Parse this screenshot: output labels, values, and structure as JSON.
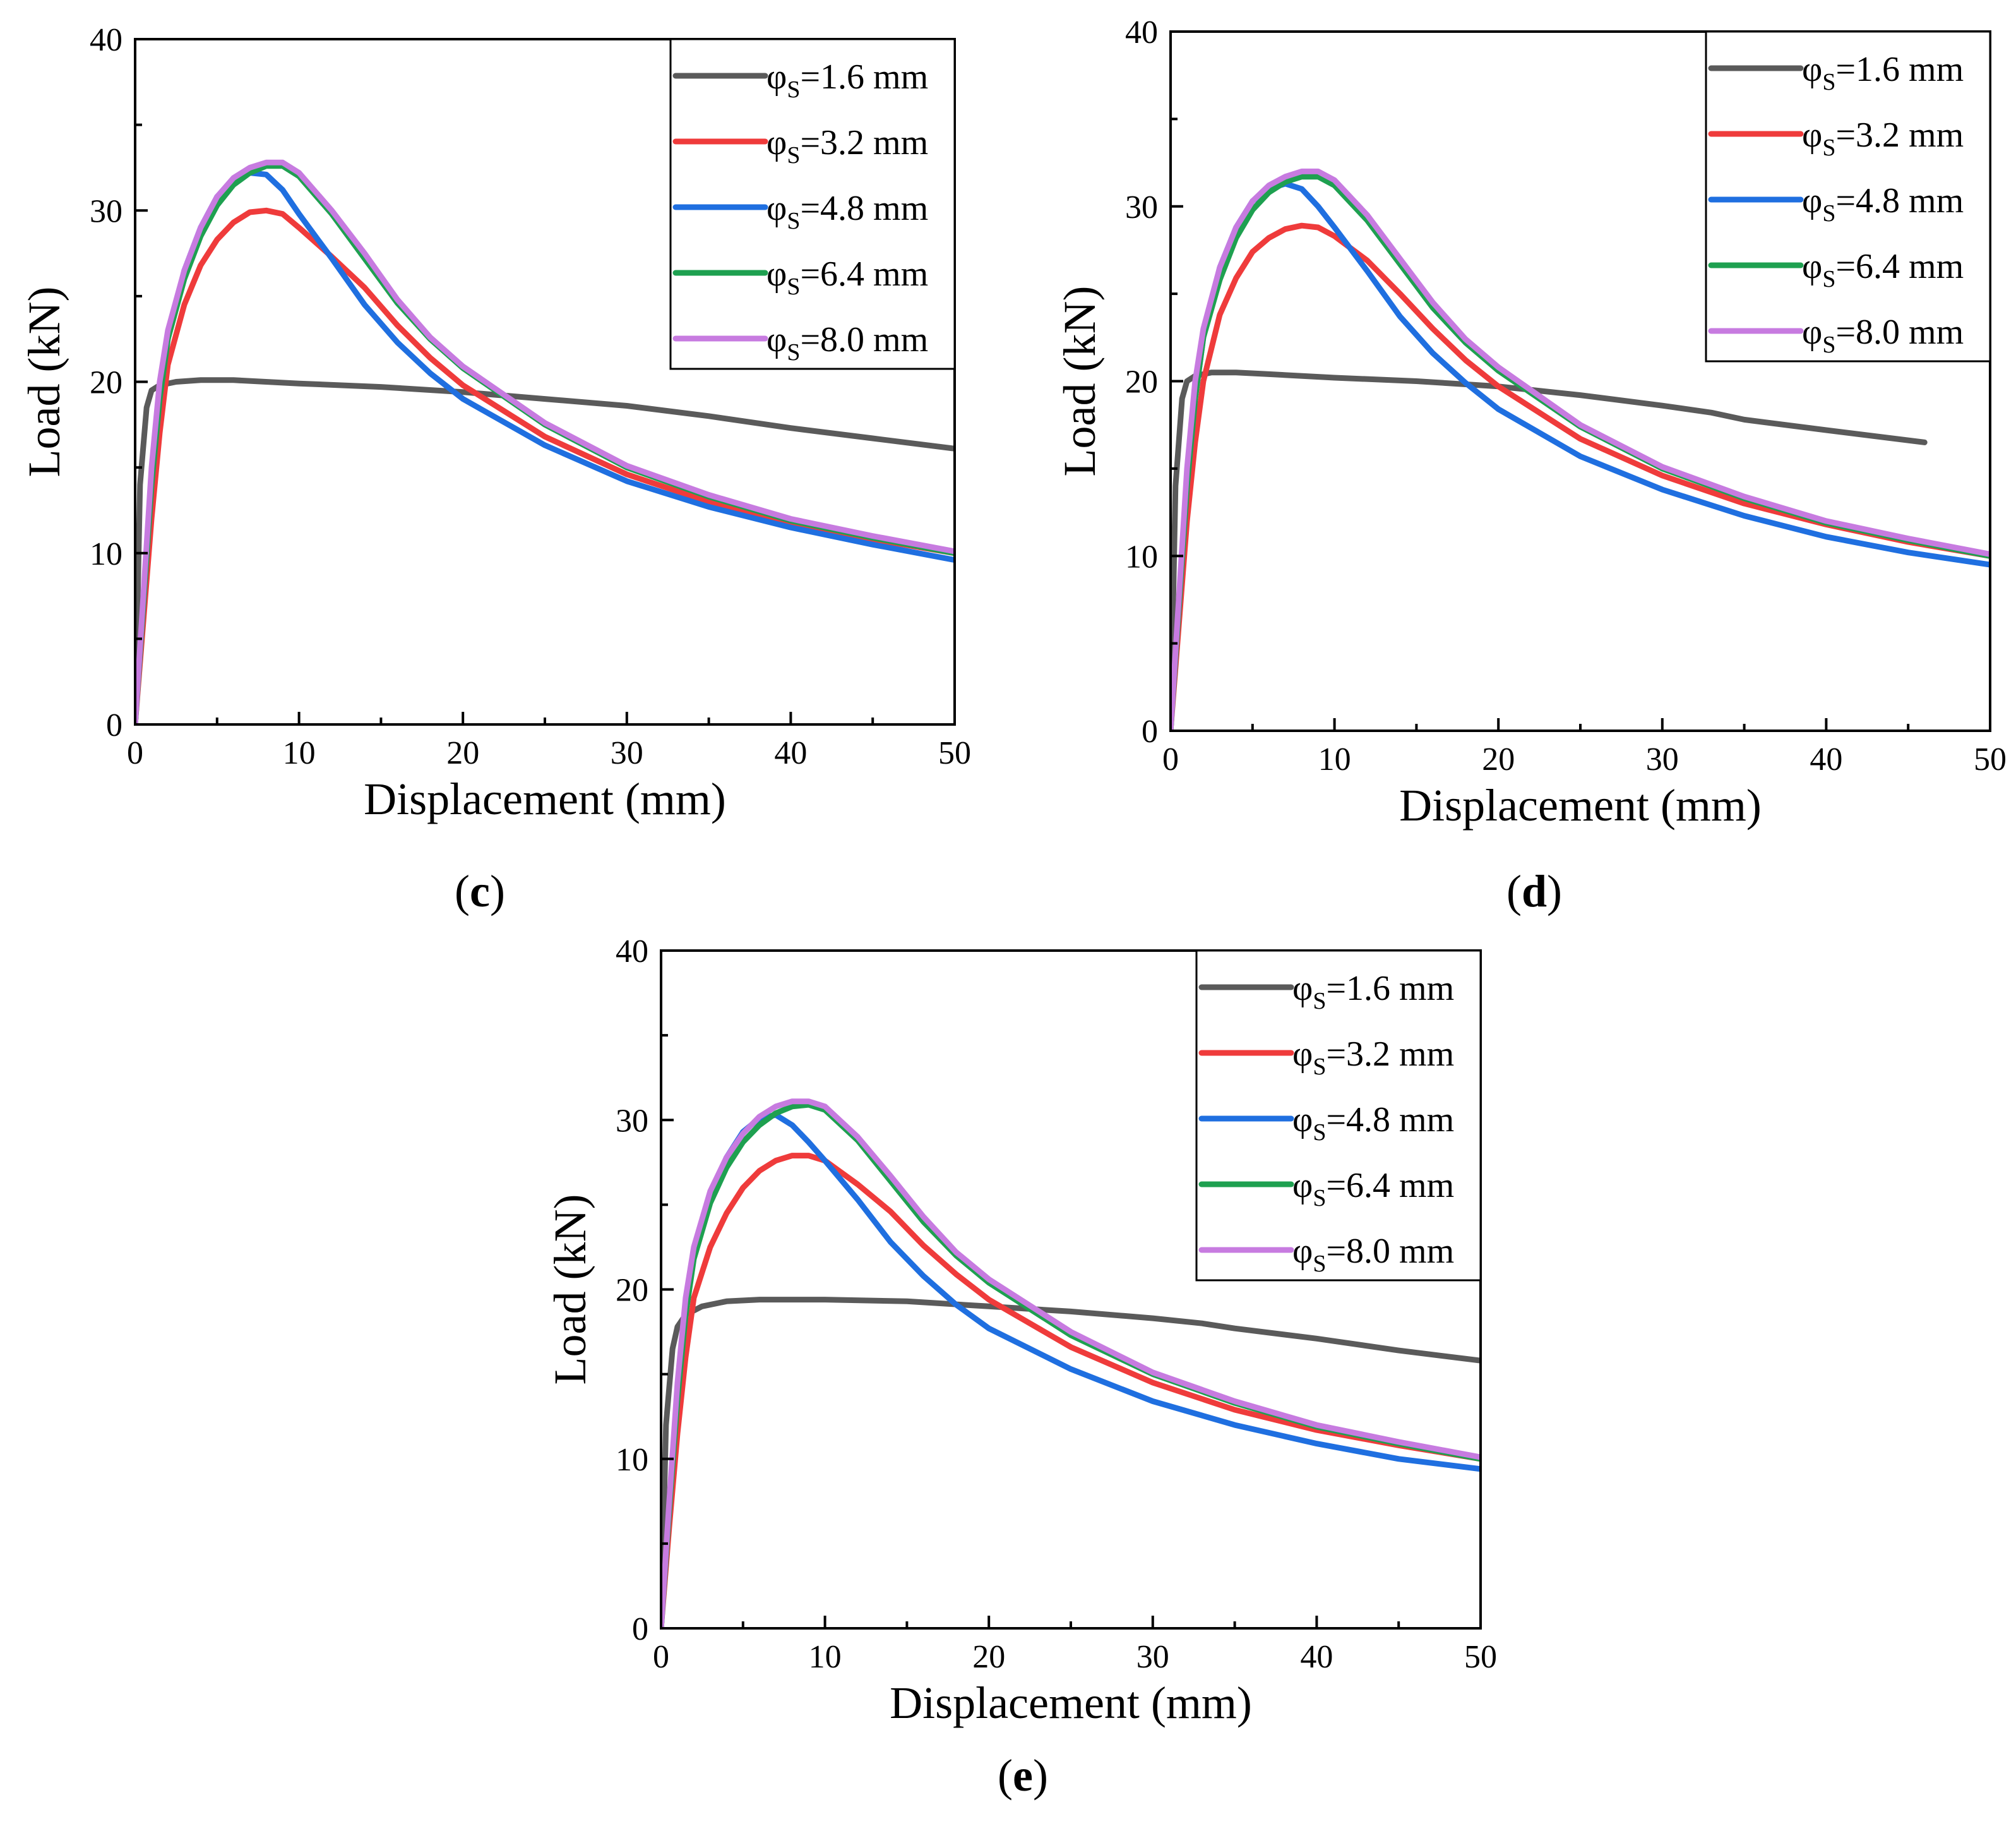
{
  "figure": {
    "legend_entries": [
      "1.6 mm",
      "3.2 mm",
      "4.8 mm",
      "6.4 mm",
      "8.0 mm"
    ],
    "legend_symbol": "φ",
    "legend_subscript": "S",
    "colors": [
      "#5a5a5a",
      "#ef3b3b",
      "#1f6fe0",
      "#1ea050",
      "#c77be0"
    ]
  },
  "chart_data": [
    {
      "type": "line",
      "panel_label": "c",
      "xlabel": "Displacement (mm)",
      "ylabel": "Load (kN)",
      "xlim": [
        0,
        50
      ],
      "ylim": [
        0,
        40
      ],
      "xticks": [
        0,
        10,
        20,
        30,
        40,
        50
      ],
      "yticks": [
        0,
        10,
        20,
        30,
        40
      ],
      "legend": "top-right",
      "series": [
        {
          "name": "φS=1.6 mm",
          "x": [
            0,
            0.3,
            0.7,
            1.0,
            1.5,
            2.5,
            4,
            6,
            10,
            15,
            20,
            25,
            30,
            35,
            40,
            45,
            50
          ],
          "y": [
            0,
            14,
            18.5,
            19.5,
            19.8,
            20.0,
            20.1,
            20.1,
            19.9,
            19.7,
            19.4,
            19.0,
            18.6,
            18.0,
            17.3,
            16.7,
            16.1
          ]
        },
        {
          "name": "φS=3.2 mm",
          "x": [
            0,
            0.5,
            1,
            1.5,
            2,
            3,
            4,
            5,
            6,
            7,
            8,
            9,
            10,
            12,
            14,
            16,
            18,
            20,
            25,
            30,
            35,
            40,
            45,
            50
          ],
          "y": [
            0,
            6,
            12,
            17,
            21,
            24.5,
            26.8,
            28.3,
            29.3,
            29.9,
            30.0,
            29.8,
            29.0,
            27.3,
            25.5,
            23.3,
            21.4,
            19.8,
            16.8,
            14.6,
            13.0,
            11.8,
            10.8,
            10.0
          ]
        },
        {
          "name": "φS=4.8 mm",
          "x": [
            0,
            0.5,
            1,
            1.5,
            2,
            3,
            4,
            5,
            6,
            7,
            8,
            9,
            10,
            12,
            14,
            16,
            18,
            20,
            25,
            30,
            35,
            40,
            45,
            50
          ],
          "y": [
            0,
            7,
            14,
            19,
            22.5,
            26.5,
            29,
            30.8,
            31.8,
            32.2,
            32.1,
            31.2,
            29.8,
            27.2,
            24.5,
            22.3,
            20.5,
            19.0,
            16.3,
            14.2,
            12.7,
            11.5,
            10.5,
            9.6
          ]
        },
        {
          "name": "φS=6.4 mm",
          "x": [
            0,
            0.5,
            1,
            1.5,
            2,
            3,
            4,
            5,
            6,
            7,
            8,
            9,
            10,
            12,
            14,
            16,
            18,
            20,
            25,
            30,
            35,
            40,
            45,
            50
          ],
          "y": [
            0,
            7,
            14,
            19,
            22.5,
            26,
            28.5,
            30.3,
            31.5,
            32.2,
            32.6,
            32.6,
            32.0,
            29.8,
            27.2,
            24.6,
            22.5,
            20.8,
            17.5,
            15.0,
            13.3,
            11.9,
            10.9,
            10.0
          ]
        },
        {
          "name": "φS=8.0 mm",
          "x": [
            0,
            0.5,
            1,
            1.5,
            2,
            3,
            4,
            5,
            6,
            7,
            8,
            9,
            10,
            12,
            14,
            16,
            18,
            20,
            25,
            30,
            35,
            40,
            45,
            50
          ],
          "y": [
            0,
            7.5,
            15,
            20,
            23,
            26.5,
            29,
            30.8,
            31.9,
            32.5,
            32.8,
            32.8,
            32.2,
            30.0,
            27.5,
            24.8,
            22.6,
            20.9,
            17.6,
            15.1,
            13.4,
            12.0,
            11.0,
            10.1
          ]
        }
      ]
    },
    {
      "type": "line",
      "panel_label": "d",
      "xlabel": "Displacement (mm)",
      "ylabel": "Load (kN)",
      "xlim": [
        0,
        50
      ],
      "ylim": [
        0,
        40
      ],
      "xticks": [
        0,
        10,
        20,
        30,
        40,
        50
      ],
      "yticks": [
        0,
        10,
        20,
        30,
        40
      ],
      "legend": "top-right",
      "series": [
        {
          "name": "φS=1.6 mm",
          "x": [
            0,
            0.3,
            0.7,
            1.0,
            1.5,
            2.5,
            4,
            6,
            10,
            15,
            20,
            25,
            30,
            33,
            35,
            40,
            46
          ],
          "y": [
            0,
            14,
            19,
            20.0,
            20.3,
            20.5,
            20.5,
            20.4,
            20.2,
            20.0,
            19.7,
            19.2,
            18.6,
            18.2,
            17.8,
            17.2,
            16.5
          ]
        },
        {
          "name": "φS=3.2 mm",
          "x": [
            0,
            0.5,
            1,
            1.5,
            2,
            3,
            4,
            5,
            6,
            7,
            8,
            9,
            10,
            12,
            14,
            16,
            18,
            20,
            25,
            30,
            35,
            40,
            45,
            50
          ],
          "y": [
            0,
            6,
            12,
            16.5,
            20,
            23.8,
            25.9,
            27.4,
            28.2,
            28.7,
            28.9,
            28.8,
            28.3,
            26.9,
            25.0,
            23.0,
            21.2,
            19.7,
            16.7,
            14.6,
            13.0,
            11.8,
            10.8,
            10.0
          ]
        },
        {
          "name": "φS=4.8 mm",
          "x": [
            0,
            0.5,
            1,
            1.5,
            2,
            3,
            4,
            5,
            6,
            7,
            8,
            9,
            10,
            12,
            14,
            16,
            18,
            20,
            25,
            30,
            35,
            40,
            45,
            50
          ],
          "y": [
            0,
            7,
            14,
            19,
            22.5,
            26.5,
            28.8,
            30.3,
            31.0,
            31.3,
            31.0,
            30.0,
            28.8,
            26.3,
            23.7,
            21.6,
            19.9,
            18.4,
            15.7,
            13.8,
            12.3,
            11.1,
            10.2,
            9.5
          ]
        },
        {
          "name": "φS=6.4 mm",
          "x": [
            0,
            0.5,
            1,
            1.5,
            2,
            3,
            4,
            5,
            6,
            7,
            8,
            9,
            10,
            12,
            14,
            16,
            18,
            20,
            25,
            30,
            35,
            40,
            45,
            50
          ],
          "y": [
            0,
            7,
            14,
            19,
            22.5,
            25.8,
            28.2,
            29.8,
            30.8,
            31.4,
            31.7,
            31.7,
            31.2,
            29.2,
            26.7,
            24.2,
            22.2,
            20.6,
            17.4,
            15.0,
            13.3,
            11.9,
            10.9,
            10.0
          ]
        },
        {
          "name": "φS=8.0 mm",
          "x": [
            0,
            0.5,
            1,
            1.5,
            2,
            3,
            4,
            5,
            6,
            7,
            8,
            9,
            10,
            12,
            14,
            16,
            18,
            20,
            25,
            30,
            35,
            40,
            45,
            50
          ],
          "y": [
            0,
            7.5,
            15,
            20,
            23,
            26.5,
            28.8,
            30.3,
            31.2,
            31.7,
            32.0,
            32.0,
            31.5,
            29.5,
            27.0,
            24.5,
            22.4,
            20.8,
            17.5,
            15.1,
            13.4,
            12.0,
            11.0,
            10.1
          ]
        }
      ]
    },
    {
      "type": "line",
      "panel_label": "e",
      "xlabel": "Displacement (mm)",
      "ylabel": "Load (kN)",
      "xlim": [
        0,
        50
      ],
      "ylim": [
        0,
        40
      ],
      "xticks": [
        0,
        10,
        20,
        30,
        40,
        50
      ],
      "yticks": [
        0,
        10,
        20,
        30,
        40
      ],
      "legend": "top-right",
      "series": [
        {
          "name": "φS=1.6 mm",
          "x": [
            0,
            0.3,
            0.7,
            1.0,
            1.5,
            2.5,
            4,
            6,
            10,
            15,
            20,
            25,
            30,
            33,
            35,
            40,
            45,
            50
          ],
          "y": [
            0,
            12,
            16.5,
            17.8,
            18.5,
            19.0,
            19.3,
            19.4,
            19.4,
            19.3,
            19.0,
            18.7,
            18.3,
            18.0,
            17.7,
            17.1,
            16.4,
            15.8
          ]
        },
        {
          "name": "φS=3.2 mm",
          "x": [
            0,
            0.5,
            1,
            1.5,
            2,
            3,
            4,
            5,
            6,
            7,
            8,
            9,
            10,
            12,
            14,
            16,
            18,
            20,
            25,
            30,
            35,
            40,
            45,
            50
          ],
          "y": [
            0,
            6,
            11.5,
            16,
            19.5,
            22.5,
            24.5,
            26,
            27,
            27.6,
            27.9,
            27.9,
            27.6,
            26.2,
            24.6,
            22.6,
            20.9,
            19.4,
            16.6,
            14.5,
            12.9,
            11.7,
            10.8,
            10.0
          ]
        },
        {
          "name": "φS=4.8 mm",
          "x": [
            0,
            0.5,
            1,
            1.5,
            2,
            3,
            4,
            5,
            6,
            7,
            8,
            9,
            10,
            12,
            14,
            16,
            18,
            20,
            25,
            30,
            35,
            40,
            45,
            50
          ],
          "y": [
            0,
            7,
            14,
            18.5,
            22,
            25.7,
            27.8,
            29.3,
            30.1,
            30.3,
            29.7,
            28.7,
            27.6,
            25.3,
            22.8,
            20.8,
            19.1,
            17.7,
            15.3,
            13.4,
            12.0,
            10.9,
            10.0,
            9.4
          ]
        },
        {
          "name": "φS=6.4 mm",
          "x": [
            0,
            0.5,
            1,
            1.5,
            2,
            3,
            4,
            5,
            6,
            7,
            8,
            9,
            10,
            12,
            14,
            16,
            18,
            20,
            25,
            30,
            35,
            40,
            45,
            50
          ],
          "y": [
            0,
            7,
            13.5,
            18.5,
            21.8,
            25.1,
            27.2,
            28.7,
            29.7,
            30.4,
            30.8,
            30.9,
            30.6,
            28.8,
            26.4,
            24.0,
            22.0,
            20.4,
            17.3,
            15.0,
            13.3,
            11.9,
            10.9,
            10.0
          ]
        },
        {
          "name": "φS=8.0 mm",
          "x": [
            0,
            0.5,
            1,
            1.5,
            2,
            3,
            4,
            5,
            6,
            7,
            8,
            9,
            10,
            12,
            14,
            16,
            18,
            20,
            25,
            30,
            35,
            40,
            45,
            50
          ],
          "y": [
            0,
            7.5,
            14.5,
            19.5,
            22.5,
            25.8,
            27.8,
            29.2,
            30.2,
            30.8,
            31.1,
            31.1,
            30.8,
            29.0,
            26.7,
            24.3,
            22.2,
            20.6,
            17.5,
            15.1,
            13.4,
            12.0,
            11.0,
            10.1
          ]
        }
      ]
    }
  ]
}
